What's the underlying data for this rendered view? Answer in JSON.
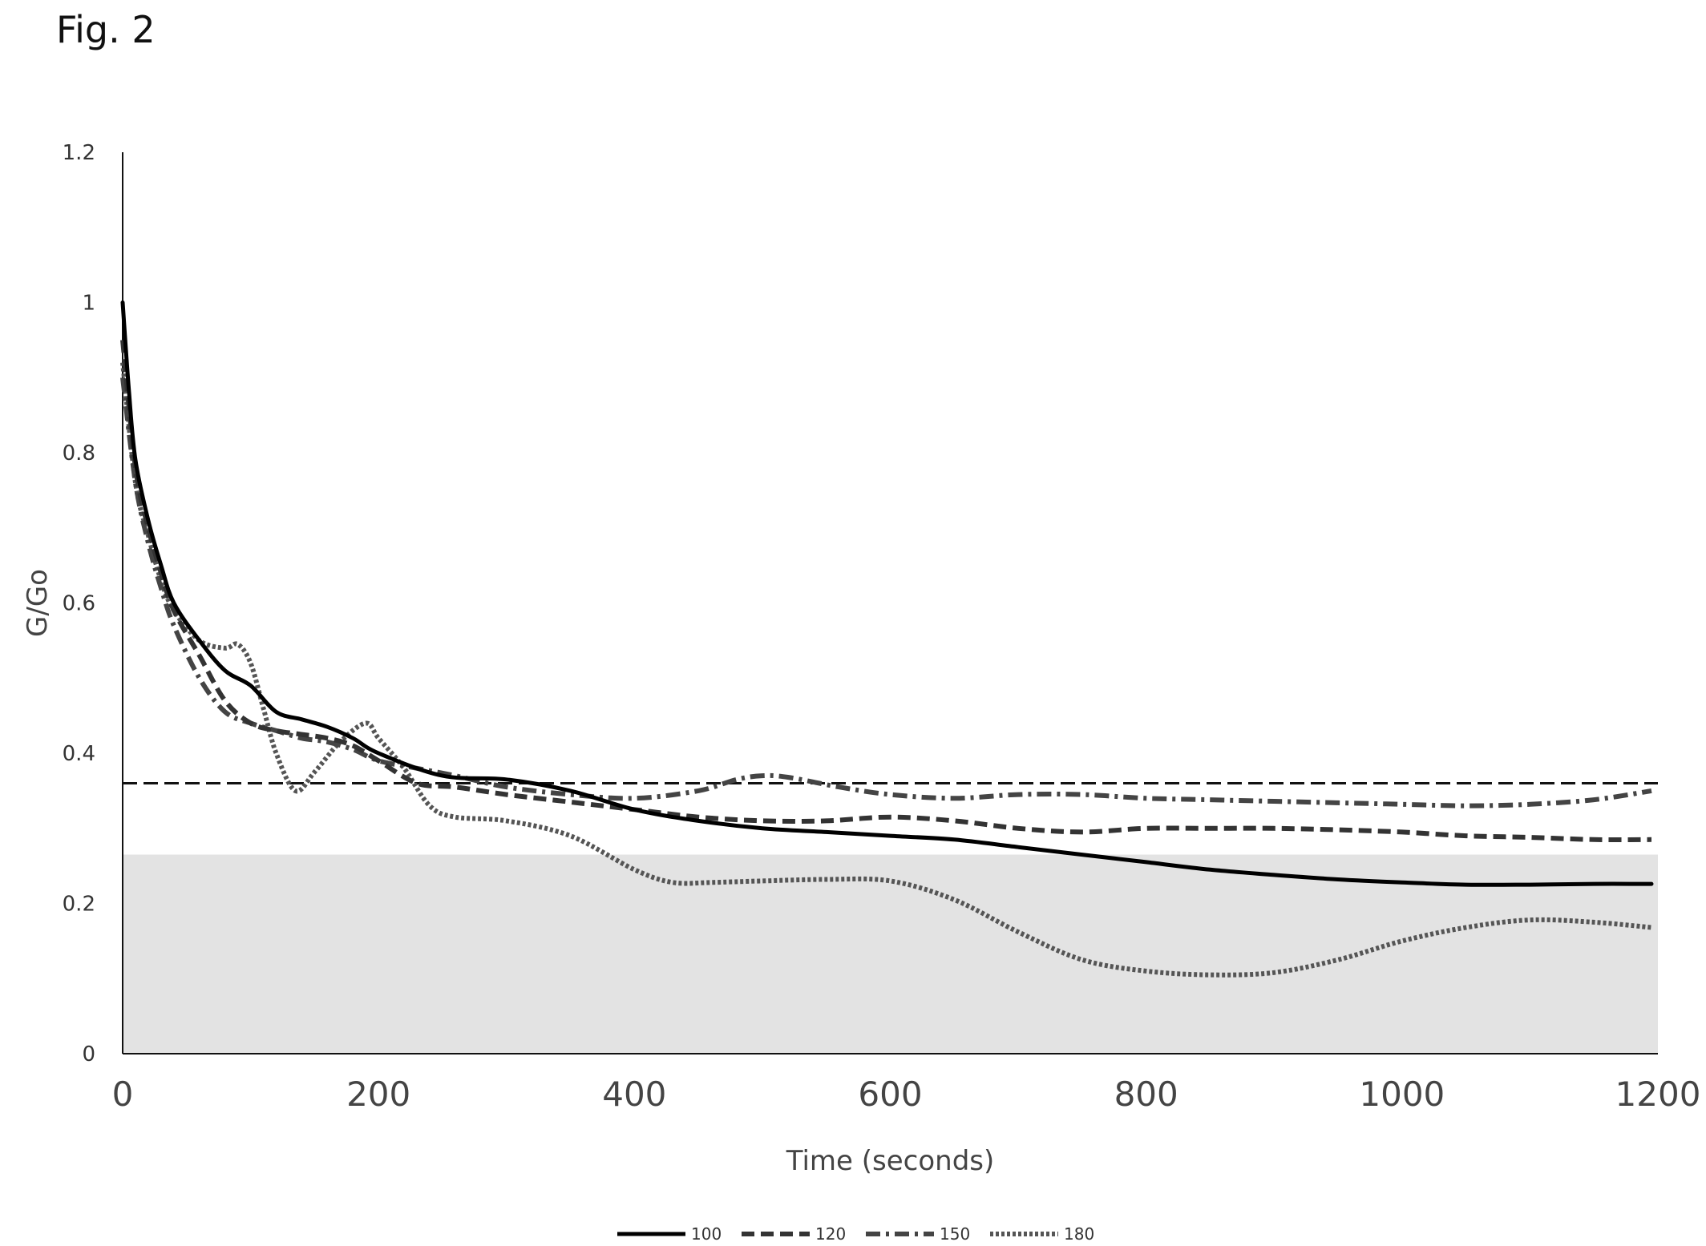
{
  "figure": {
    "label": "Fig. 2"
  },
  "chart_data": {
    "type": "line",
    "title": "",
    "xlabel": "Time (seconds)",
    "ylabel": "G/Go",
    "xlim": [
      0,
      1200
    ],
    "ylim": [
      0,
      1.2
    ],
    "x_ticks": [
      0,
      200,
      400,
      600,
      800,
      1000,
      1200
    ],
    "x_tick_labels": [
      "0",
      "200",
      "400",
      "600",
      "800",
      "1000",
      "1200"
    ],
    "y_ticks": [
      0,
      0.2,
      0.4,
      0.6,
      0.8,
      1,
      1.2
    ],
    "y_tick_labels": [
      "0",
      "0.2",
      "0.4",
      "0.6",
      "0.8",
      "1",
      "1.2"
    ],
    "grid": false,
    "legend_position": "bottom",
    "reference_line": {
      "y": 0.36,
      "style": "dashed",
      "color": "#111111"
    },
    "shaded_band": {
      "y_from": 0,
      "y_to": 0.265,
      "color": "#e3e3e3"
    },
    "series": [
      {
        "name": "100",
        "style": "solid",
        "color": "#000000",
        "points": [
          [
            0,
            1.0
          ],
          [
            5,
            0.88
          ],
          [
            10,
            0.79
          ],
          [
            20,
            0.71
          ],
          [
            30,
            0.65
          ],
          [
            40,
            0.6
          ],
          [
            60,
            0.55
          ],
          [
            80,
            0.51
          ],
          [
            100,
            0.49
          ],
          [
            120,
            0.455
          ],
          [
            140,
            0.445
          ],
          [
            160,
            0.435
          ],
          [
            180,
            0.42
          ],
          [
            200,
            0.4
          ],
          [
            250,
            0.37
          ],
          [
            300,
            0.365
          ],
          [
            350,
            0.35
          ],
          [
            400,
            0.325
          ],
          [
            450,
            0.31
          ],
          [
            500,
            0.3
          ],
          [
            550,
            0.295
          ],
          [
            600,
            0.29
          ],
          [
            650,
            0.285
          ],
          [
            700,
            0.275
          ],
          [
            750,
            0.265
          ],
          [
            800,
            0.255
          ],
          [
            850,
            0.245
          ],
          [
            900,
            0.238
          ],
          [
            950,
            0.232
          ],
          [
            1000,
            0.228
          ],
          [
            1050,
            0.225
          ],
          [
            1100,
            0.225
          ],
          [
            1150,
            0.226
          ],
          [
            1195,
            0.226
          ]
        ]
      },
      {
        "name": "120",
        "style": "dashed",
        "color": "#333333",
        "points": [
          [
            0,
            0.95
          ],
          [
            10,
            0.78
          ],
          [
            20,
            0.7
          ],
          [
            30,
            0.64
          ],
          [
            40,
            0.59
          ],
          [
            60,
            0.53
          ],
          [
            80,
            0.47
          ],
          [
            100,
            0.44
          ],
          [
            120,
            0.43
          ],
          [
            140,
            0.425
          ],
          [
            160,
            0.42
          ],
          [
            180,
            0.41
          ],
          [
            200,
            0.39
          ],
          [
            230,
            0.36
          ],
          [
            260,
            0.355
          ],
          [
            300,
            0.345
          ],
          [
            350,
            0.335
          ],
          [
            400,
            0.325
          ],
          [
            450,
            0.315
          ],
          [
            500,
            0.31
          ],
          [
            550,
            0.31
          ],
          [
            600,
            0.315
          ],
          [
            650,
            0.31
          ],
          [
            700,
            0.3
          ],
          [
            750,
            0.295
          ],
          [
            800,
            0.3
          ],
          [
            850,
            0.3
          ],
          [
            900,
            0.3
          ],
          [
            950,
            0.298
          ],
          [
            1000,
            0.295
          ],
          [
            1050,
            0.29
          ],
          [
            1100,
            0.288
          ],
          [
            1150,
            0.285
          ],
          [
            1195,
            0.285
          ]
        ]
      },
      {
        "name": "150",
        "style": "dashdot",
        "color": "#444444",
        "points": [
          [
            0,
            0.9
          ],
          [
            10,
            0.76
          ],
          [
            20,
            0.68
          ],
          [
            30,
            0.62
          ],
          [
            40,
            0.57
          ],
          [
            60,
            0.5
          ],
          [
            80,
            0.455
          ],
          [
            100,
            0.44
          ],
          [
            120,
            0.43
          ],
          [
            140,
            0.42
          ],
          [
            160,
            0.415
          ],
          [
            180,
            0.405
          ],
          [
            200,
            0.39
          ],
          [
            230,
            0.38
          ],
          [
            260,
            0.37
          ],
          [
            300,
            0.355
          ],
          [
            350,
            0.345
          ],
          [
            400,
            0.34
          ],
          [
            450,
            0.35
          ],
          [
            480,
            0.365
          ],
          [
            500,
            0.37
          ],
          [
            520,
            0.368
          ],
          [
            560,
            0.355
          ],
          [
            600,
            0.345
          ],
          [
            650,
            0.34
          ],
          [
            700,
            0.345
          ],
          [
            750,
            0.345
          ],
          [
            800,
            0.34
          ],
          [
            850,
            0.338
          ],
          [
            900,
            0.336
          ],
          [
            950,
            0.334
          ],
          [
            1000,
            0.332
          ],
          [
            1050,
            0.33
          ],
          [
            1100,
            0.332
          ],
          [
            1150,
            0.338
          ],
          [
            1195,
            0.35
          ]
        ]
      },
      {
        "name": "180",
        "style": "dotted",
        "color": "#555555",
        "points": [
          [
            0,
            0.92
          ],
          [
            10,
            0.76
          ],
          [
            20,
            0.69
          ],
          [
            30,
            0.63
          ],
          [
            40,
            0.59
          ],
          [
            60,
            0.55
          ],
          [
            80,
            0.54
          ],
          [
            90,
            0.545
          ],
          [
            100,
            0.52
          ],
          [
            110,
            0.46
          ],
          [
            120,
            0.4
          ],
          [
            135,
            0.35
          ],
          [
            150,
            0.375
          ],
          [
            170,
            0.415
          ],
          [
            190,
            0.44
          ],
          [
            200,
            0.42
          ],
          [
            220,
            0.38
          ],
          [
            240,
            0.33
          ],
          [
            260,
            0.315
          ],
          [
            300,
            0.31
          ],
          [
            350,
            0.29
          ],
          [
            400,
            0.245
          ],
          [
            430,
            0.228
          ],
          [
            460,
            0.228
          ],
          [
            500,
            0.23
          ],
          [
            550,
            0.232
          ],
          [
            600,
            0.23
          ],
          [
            650,
            0.205
          ],
          [
            700,
            0.162
          ],
          [
            750,
            0.125
          ],
          [
            800,
            0.11
          ],
          [
            850,
            0.105
          ],
          [
            900,
            0.108
          ],
          [
            950,
            0.125
          ],
          [
            1000,
            0.15
          ],
          [
            1050,
            0.168
          ],
          [
            1100,
            0.178
          ],
          [
            1150,
            0.175
          ],
          [
            1195,
            0.168
          ]
        ]
      }
    ]
  }
}
